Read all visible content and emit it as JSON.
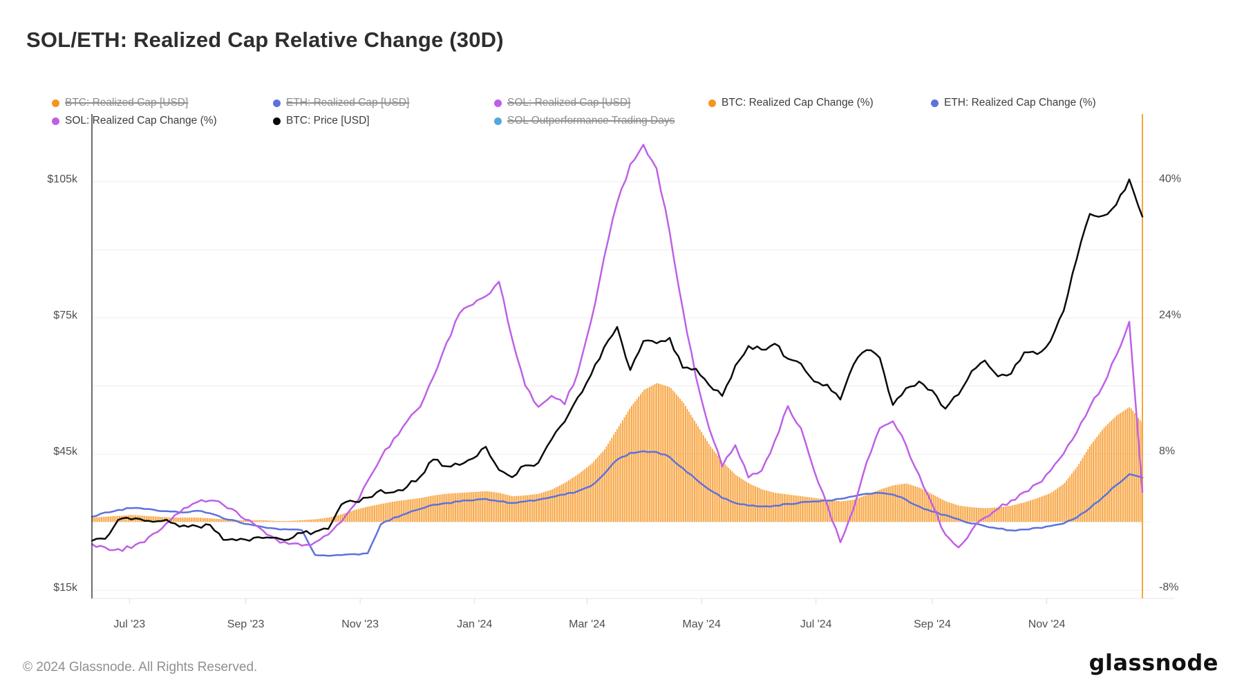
{
  "title": "SOL/ETH: Realized Cap Relative Change (30D)",
  "footer": {
    "copyright": "© 2024 Glassnode. All Rights Reserved.",
    "brand": "glassnode"
  },
  "colors": {
    "orange": "#F7941E",
    "blue": "#5C72DC",
    "purple": "#BE60E6",
    "black": "#0a0a0a",
    "lightblue": "#55A7DC",
    "end_marker": "#F6A63B",
    "gridline": "#ededed",
    "axis_spine": "#2f2f2f"
  },
  "legend": {
    "rows": [
      [
        {
          "id": "btc-realized-cap-usd",
          "label": "BTC: Realized Cap [USD]",
          "color": "#F7941E",
          "disabled": true
        },
        {
          "id": "eth-realized-cap-usd",
          "label": "ETH: Realized Cap [USD]",
          "color": "#5C72DC",
          "disabled": true
        },
        {
          "id": "sol-realized-cap-usd",
          "label": "SOL: Realized Cap [USD]",
          "color": "#BE60E6",
          "disabled": true
        },
        {
          "id": "btc-realized-cap-change",
          "label": "BTC: Realized Cap Change (%)",
          "color": "#F7941E",
          "disabled": false
        },
        {
          "id": "eth-realized-cap-change",
          "label": "ETH: Realized Cap Change (%)",
          "color": "#5C72DC",
          "disabled": false
        }
      ],
      [
        {
          "id": "sol-realized-cap-change",
          "label": "SOL: Realized Cap Change (%)",
          "color": "#BE60E6",
          "disabled": false
        },
        {
          "id": "btc-price-usd",
          "label": "BTC: Price [USD]",
          "color": "#0a0a0a",
          "disabled": false
        },
        {
          "id": "sol-outperformance-trading-days",
          "label": "SOL Outperformance Trading Days",
          "color": "#55A7DC",
          "disabled": true
        }
      ]
    ]
  },
  "chart_data": {
    "type": "mixed",
    "title": "SOL/ETH: Realized Cap Relative Change (30D)",
    "x": {
      "start": "2023-06-11",
      "step_days": 7,
      "points": 81
    },
    "x_ticks": [
      {
        "date": "2023-07-01",
        "label": "Jul '23"
      },
      {
        "date": "2023-09-01",
        "label": "Sep '23"
      },
      {
        "date": "2023-11-01",
        "label": "Nov '23"
      },
      {
        "date": "2024-01-01",
        "label": "Jan '24"
      },
      {
        "date": "2024-03-01",
        "label": "Mar '24"
      },
      {
        "date": "2024-05-01",
        "label": "May '24"
      },
      {
        "date": "2024-07-01",
        "label": "Jul '24"
      },
      {
        "date": "2024-09-01",
        "label": "Sep '24"
      },
      {
        "date": "2024-11-01",
        "label": "Nov '24"
      }
    ],
    "axes": {
      "left": {
        "unit": "kUSD",
        "min": 13.2,
        "max": 119.9,
        "grid": [
          105,
          90,
          75,
          60,
          45,
          30,
          15
        ],
        "ticks": [
          {
            "v": 105,
            "label": "$105k"
          },
          {
            "v": 75,
            "label": "$75k"
          },
          {
            "v": 45,
            "label": "$45k"
          },
          {
            "v": 15,
            "label": "$15k"
          }
        ]
      },
      "right": {
        "unit": "%",
        "min": -9.0,
        "max": 47.9,
        "ticks": [
          {
            "v": 40,
            "label": "40%"
          },
          {
            "v": 24,
            "label": "24%"
          },
          {
            "v": 8,
            "label": "8%"
          },
          {
            "v": -8,
            "label": "-8%"
          }
        ]
      }
    },
    "end_marker": {
      "date": "2024-12-22",
      "color": "#F6A63B"
    },
    "series": [
      {
        "id": "btc-rc-change",
        "name": "BTC: Realized Cap Change (%)",
        "type": "bar",
        "axis": "right",
        "color": "#F7941E",
        "values": [
          0.5,
          0.6,
          0.7,
          0.8,
          0.7,
          0.6,
          0.5,
          0.5,
          0.5,
          0.4,
          0.3,
          0.2,
          0.2,
          0.2,
          0.1,
          0.1,
          0.2,
          0.3,
          0.5,
          0.9,
          1.4,
          1.8,
          2.1,
          2.4,
          2.6,
          2.8,
          3.1,
          3.3,
          3.4,
          3.5,
          3.6,
          3.4,
          3.0,
          3.1,
          3.3,
          3.8,
          4.6,
          5.6,
          6.8,
          8.5,
          11.0,
          13.5,
          15.5,
          16.3,
          15.8,
          14.0,
          11.5,
          9.0,
          7.0,
          5.5,
          4.5,
          3.8,
          3.4,
          3.2,
          3.0,
          2.8,
          2.6,
          2.4,
          2.6,
          3.2,
          3.8,
          4.3,
          4.5,
          4.0,
          3.2,
          2.4,
          1.9,
          1.7,
          1.6,
          1.7,
          1.9,
          2.3,
          2.8,
          3.4,
          4.5,
          6.5,
          9.0,
          11.0,
          12.5,
          13.5,
          11.5
        ]
      },
      {
        "id": "eth-rc-change",
        "name": "ETH: Realized Cap Change (%)",
        "type": "line",
        "axis": "right",
        "color": "#5C72DC",
        "values": [
          0.6,
          1.1,
          1.4,
          1.6,
          1.5,
          1.3,
          1.2,
          1.1,
          1.3,
          1.0,
          0.4,
          0.1,
          -0.3,
          -0.6,
          -0.8,
          -0.9,
          -1.0,
          -3.9,
          -4.0,
          -3.9,
          -3.8,
          -3.7,
          -0.3,
          0.5,
          1.0,
          1.5,
          2.0,
          2.2,
          2.4,
          2.5,
          2.7,
          2.4,
          2.2,
          2.4,
          2.6,
          2.9,
          3.2,
          3.6,
          4.2,
          5.6,
          7.3,
          8.1,
          8.3,
          8.2,
          7.6,
          6.3,
          5.0,
          3.8,
          2.8,
          2.2,
          1.9,
          1.8,
          1.9,
          2.1,
          2.3,
          2.4,
          2.5,
          2.7,
          3.0,
          3.3,
          3.4,
          3.2,
          2.6,
          1.8,
          1.2,
          0.8,
          0.3,
          -0.2,
          -0.5,
          -0.8,
          -1.0,
          -0.9,
          -0.7,
          -0.5,
          -0.2,
          0.5,
          1.6,
          2.9,
          4.3,
          5.6,
          5.2
        ]
      },
      {
        "id": "sol-rc-change",
        "name": "SOL: Realized Cap Change (%)",
        "type": "line",
        "axis": "right",
        "color": "#BE60E6",
        "values": [
          -2.6,
          -3.0,
          -3.2,
          -3.1,
          -2.4,
          -1.2,
          0.2,
          1.6,
          2.3,
          2.5,
          2.0,
          1.2,
          0.2,
          -1.0,
          -2.0,
          -2.6,
          -2.8,
          -2.4,
          -1.5,
          0.0,
          2.0,
          4.8,
          7.5,
          9.8,
          11.8,
          13.5,
          17.0,
          21.0,
          24.5,
          25.5,
          26.5,
          28.2,
          21.5,
          16.0,
          13.5,
          14.8,
          13.8,
          17.5,
          23.5,
          31.0,
          37.5,
          42.0,
          44.3,
          41.5,
          34.0,
          25.0,
          17.0,
          11.0,
          6.5,
          9.0,
          5.2,
          6.0,
          9.5,
          13.6,
          11.0,
          6.0,
          2.0,
          -2.4,
          1.5,
          7.0,
          11.0,
          11.8,
          9.0,
          5.5,
          2.0,
          -1.5,
          -3.0,
          -1.0,
          0.5,
          1.5,
          2.5,
          3.5,
          4.5,
          6.0,
          8.0,
          10.5,
          13.5,
          16.0,
          19.5,
          23.5,
          3.5
        ]
      },
      {
        "id": "btc-price",
        "name": "BTC: Price [USD]",
        "type": "line",
        "axis": "left",
        "color": "#0a0a0a",
        "values": [
          25.9,
          26.3,
          30.5,
          30.6,
          30.3,
          30.2,
          29.9,
          29.3,
          29.1,
          29.4,
          26.1,
          26.0,
          25.9,
          26.5,
          26.6,
          26.2,
          27.6,
          27.9,
          28.5,
          33.9,
          34.5,
          35.4,
          37.1,
          36.6,
          37.8,
          40.0,
          43.8,
          42.3,
          42.6,
          44.0,
          46.6,
          41.5,
          39.9,
          42.5,
          43.1,
          48.2,
          52.1,
          57.5,
          62.4,
          68.5,
          73.0,
          63.5,
          69.9,
          69.4,
          70.6,
          64.0,
          63.8,
          60.2,
          57.8,
          64.5,
          68.8,
          68.0,
          69.3,
          66.0,
          64.9,
          61.0,
          60.3,
          57.0,
          64.7,
          67.9,
          66.2,
          55.8,
          59.5,
          61.0,
          59.0,
          55.0,
          58.1,
          63.3,
          65.6,
          62.1,
          62.7,
          67.4,
          67.0,
          69.9,
          76.5,
          88.0,
          97.9,
          97.5,
          99.9,
          105.5,
          97.3
        ]
      }
    ]
  }
}
